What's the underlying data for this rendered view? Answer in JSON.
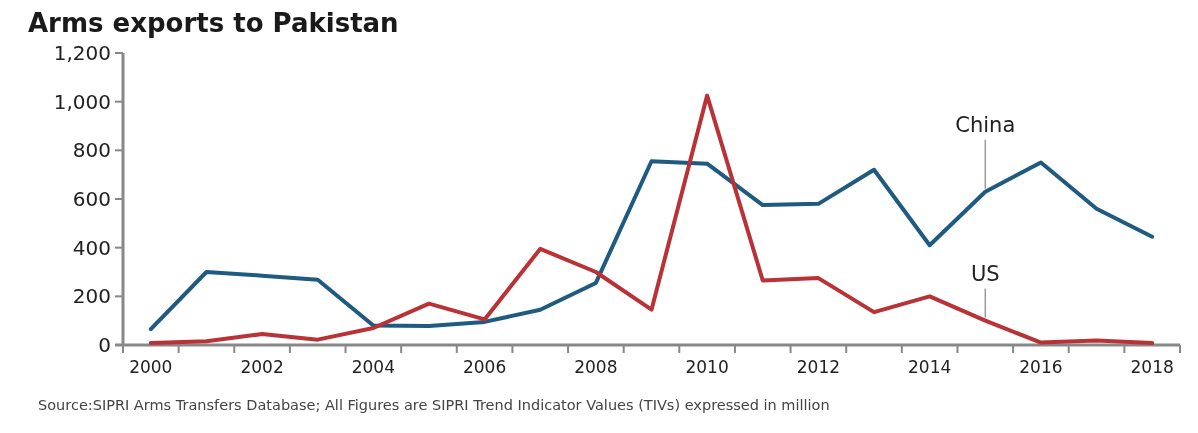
{
  "chart_data": {
    "type": "line",
    "title": "Arms exports to Pakistan",
    "categories": [
      "2000",
      null,
      "2002",
      null,
      "2004",
      null,
      "2006",
      null,
      "2008",
      null,
      "2010",
      null,
      "2012",
      null,
      "2014",
      null,
      "2016",
      null,
      "2018"
    ],
    "series": [
      {
        "name": "China",
        "color": "#1f5a80",
        "values": [
          65,
          300,
          285,
          268,
          80,
          78,
          95,
          145,
          255,
          755,
          745,
          575,
          580,
          720,
          410,
          630,
          750,
          560,
          445
        ]
      },
      {
        "name": "US",
        "color": "#b83236",
        "values": [
          8,
          15,
          45,
          22,
          70,
          170,
          105,
          395,
          300,
          145,
          1025,
          265,
          275,
          135,
          200,
          100,
          10,
          18,
          8
        ]
      }
    ],
    "ylim": [
      0,
      1200
    ],
    "yticks": [
      0,
      {
        "value": 200,
        "label": "200"
      },
      {
        "value": 400,
        "label": "400"
      },
      {
        "value": 600,
        "label": "600"
      },
      {
        "value": 800,
        "label": "800"
      },
      {
        "value": 1000,
        "label": "1,000"
      },
      {
        "value": 1200,
        "label": "1,200"
      }
    ],
    "grid": false,
    "marker": "none",
    "line_style": "solid",
    "annotations": [
      "Source:SIPRI Arms Transfers Database; All Figures are SIPRI Trend Indicator Values (TIVs) expressed in million"
    ]
  }
}
